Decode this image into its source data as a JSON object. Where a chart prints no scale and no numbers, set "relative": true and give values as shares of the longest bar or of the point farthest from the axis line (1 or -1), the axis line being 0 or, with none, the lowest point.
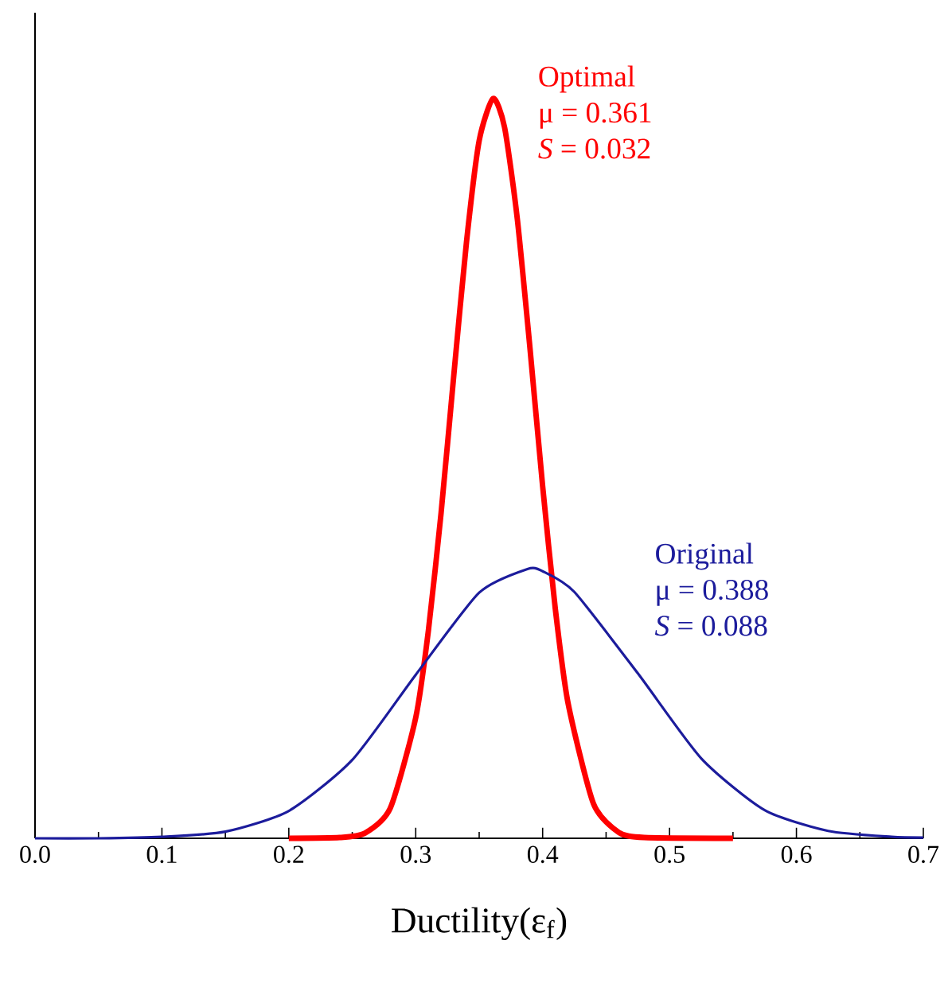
{
  "chart_data": {
    "type": "line",
    "relative": true,
    "xlabel": "Ductility(ε$_{f}$)",
    "xlim": [
      0,
      0.7
    ],
    "xticks": [
      {
        "value": 0,
        "label": "0.0"
      },
      {
        "value": 0.1,
        "label": "0.1"
      },
      {
        "value": 0.2,
        "label": "0.2"
      },
      {
        "value": 0.3,
        "label": "0.3"
      },
      {
        "value": 0.4,
        "label": "0.4"
      },
      {
        "value": 0.5,
        "label": "0.5"
      },
      {
        "value": 0.6,
        "label": "0.6"
      },
      {
        "value": 0.7,
        "label": "0.7"
      }
    ],
    "series": [
      {
        "name": "Optimal",
        "color": "#ff0000",
        "x": [
          0.2,
          0.24,
          0.26,
          0.28,
          0.3,
          0.31,
          0.32,
          0.33,
          0.34,
          0.35,
          0.361,
          0.37,
          0.38,
          0.39,
          0.4,
          0.41,
          0.42,
          0.44,
          0.46,
          0.48,
          0.55
        ],
        "values": [
          0,
          0.001,
          0.007,
          0.041,
          0.163,
          0.281,
          0.44,
          0.626,
          0.806,
          0.943,
          1,
          0.961,
          0.838,
          0.663,
          0.476,
          0.31,
          0.183,
          0.047,
          0.008,
          0.001,
          0
        ]
      },
      {
        "name": "Original",
        "color": "#1c1c9c",
        "x": [
          0,
          0.05,
          0.1,
          0.15,
          0.2,
          0.25,
          0.3,
          0.35,
          0.388,
          0.4,
          0.425,
          0.475,
          0.525,
          0.575,
          0.625,
          0.675,
          0.7
        ],
        "values": [
          0,
          0,
          0.002,
          0.009,
          0.037,
          0.106,
          0.221,
          0.332,
          0.364,
          0.361,
          0.333,
          0.223,
          0.108,
          0.038,
          0.01,
          0.002,
          0.001
        ]
      }
    ],
    "annotations": [
      "μ = 0.361",
      "*S* = 0.032",
      "μ = 0.388",
      "*S* = 0.088"
    ]
  }
}
